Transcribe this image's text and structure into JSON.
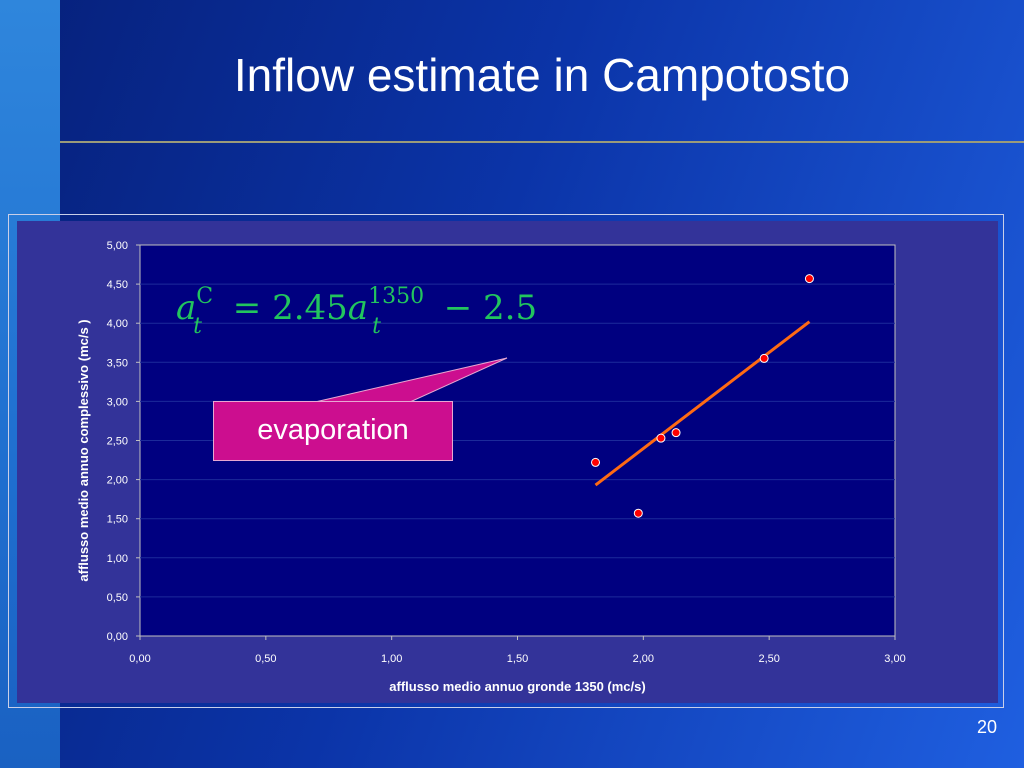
{
  "slide": {
    "title": "Inflow estimate in Campotosto",
    "page_number": "20",
    "callout_label": "evaporation",
    "equation": {
      "lhs_base": "a",
      "lhs_sup": "C",
      "lhs_sub": "t",
      "equals": "=",
      "coef": "2.45",
      "rhs_base": "a",
      "rhs_sup": "1350",
      "rhs_sub": "t",
      "minus": "−",
      "const": "2.5"
    }
  },
  "colors": {
    "background": "#0b34a8",
    "plot_area": "#000080",
    "chart_panel": "#333399",
    "points": "#ff0000",
    "trend_line": "#ff6a13",
    "equation": "#22c55e",
    "callout": "#cc0e8f"
  },
  "chart_data": {
    "type": "scatter",
    "xlabel": "afflusso medio annuo gronde 1350 (mc/s)",
    "ylabel": "afflusso medio annuo  complessivo  (mc/s )",
    "xlim": [
      0,
      3
    ],
    "ylim": [
      0,
      5
    ],
    "x_ticks": [
      "0,00",
      "0,50",
      "1,00",
      "1,50",
      "2,00",
      "2,50",
      "3,00"
    ],
    "y_ticks": [
      "0,00",
      "0,50",
      "1,00",
      "1,50",
      "2,00",
      "2,50",
      "3,00",
      "3,50",
      "4,00",
      "4,50",
      "5,00"
    ],
    "grid": "horizontal",
    "points": [
      {
        "x": 1.81,
        "y": 2.22
      },
      {
        "x": 1.98,
        "y": 1.57
      },
      {
        "x": 2.07,
        "y": 2.53
      },
      {
        "x": 2.13,
        "y": 2.6
      },
      {
        "x": 2.48,
        "y": 3.55
      },
      {
        "x": 2.66,
        "y": 4.57
      }
    ],
    "trendline": {
      "x": [
        1.81,
        2.66
      ],
      "y": [
        1.93,
        4.02
      ]
    }
  }
}
